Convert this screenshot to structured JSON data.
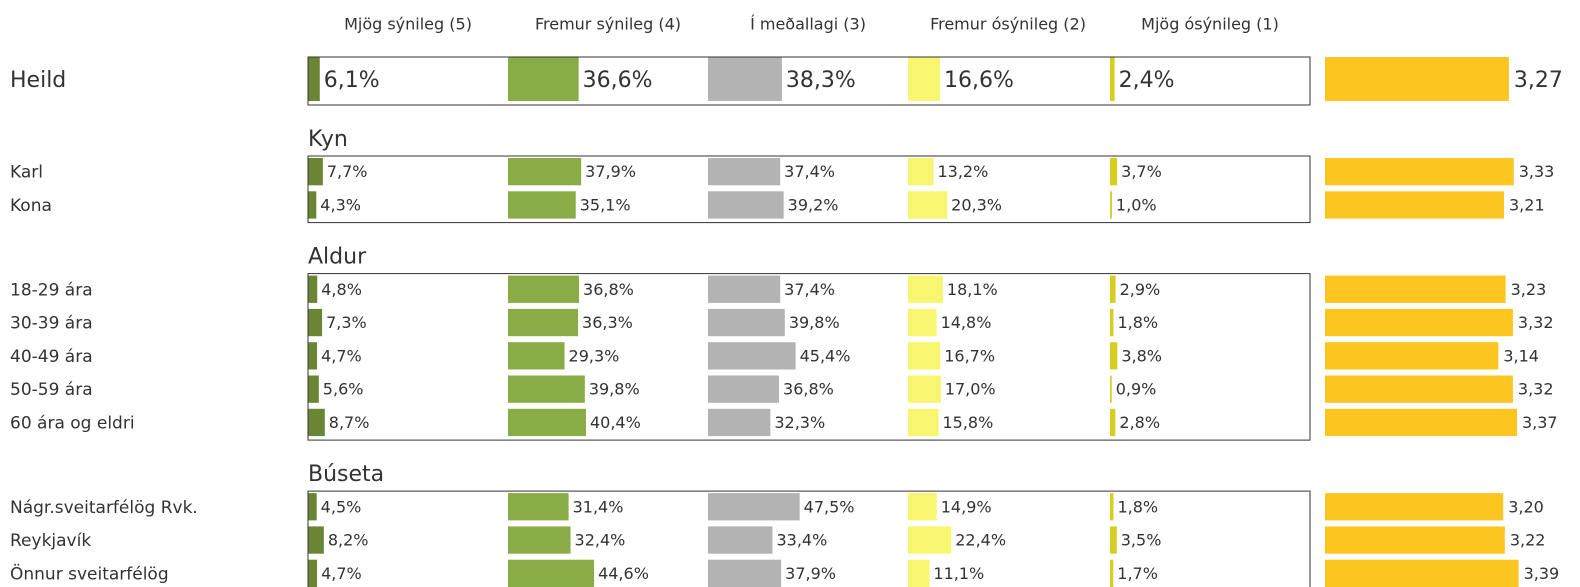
{
  "chart_data": {
    "type": "bar-table",
    "xlim": [
      0,
      100
    ],
    "series": [
      {
        "name": "Mjög sýnileg (5)",
        "color": "#6a8534",
        "values": [
          6.1,
          7.7,
          4.3,
          4.8,
          7.3,
          4.7,
          5.6,
          8.7,
          4.5,
          8.2,
          4.7
        ],
        "value_labels": [
          "6,1%",
          "7,7%",
          "4,3%",
          "4,8%",
          "7,3%",
          "4,7%",
          "5,6%",
          "8,7%",
          "4,5%",
          "8,2%",
          "4,7%"
        ]
      },
      {
        "name": "Fremur sýnileg (4)",
        "color": "#8aac46",
        "values": [
          36.6,
          37.9,
          35.1,
          36.8,
          36.3,
          29.3,
          39.8,
          40.4,
          31.4,
          32.4,
          44.6
        ],
        "value_labels": [
          "36,6%",
          "37,9%",
          "35,1%",
          "36,8%",
          "36,3%",
          "29,3%",
          "39,8%",
          "40,4%",
          "31,4%",
          "32,4%",
          "44,6%"
        ]
      },
      {
        "name": "Í meðallagi (3)",
        "color": "#b3b3b3",
        "values": [
          38.3,
          37.4,
          39.2,
          37.4,
          39.8,
          45.4,
          36.8,
          32.3,
          47.5,
          33.4,
          37.9
        ],
        "value_labels": [
          "38,3%",
          "37,4%",
          "39,2%",
          "37,4%",
          "39,8%",
          "45,4%",
          "36,8%",
          "32,3%",
          "47,5%",
          "33,4%",
          "37,9%"
        ]
      },
      {
        "name": "Fremur ósýnileg (2)",
        "color": "#f8f56e",
        "values": [
          16.6,
          13.2,
          20.3,
          18.1,
          14.8,
          16.7,
          17.0,
          15.8,
          14.9,
          22.4,
          11.1
        ],
        "value_labels": [
          "16,6%",
          "13,2%",
          "20,3%",
          "18,1%",
          "14,8%",
          "16,7%",
          "17,0%",
          "15,8%",
          "14,9%",
          "22,4%",
          "11,1%"
        ]
      },
      {
        "name": "Mjög ósýnileg (1)",
        "color": "#d6cf22",
        "values": [
          2.4,
          3.7,
          1.0,
          2.9,
          1.8,
          3.8,
          0.9,
          2.8,
          1.8,
          3.5,
          1.7
        ],
        "value_labels": [
          "2,4%",
          "3,7%",
          "1,0%",
          "2,9%",
          "1,8%",
          "3,8%",
          "0,9%",
          "2,8%",
          "1,8%",
          "3,5%",
          "1,7%"
        ]
      }
    ],
    "mean": {
      "color": "#fdc520",
      "xlim": [
        1,
        5
      ],
      "values": [
        3.27,
        3.33,
        3.21,
        3.23,
        3.32,
        3.14,
        3.32,
        3.37,
        3.2,
        3.22,
        3.39
      ],
      "value_labels": [
        "3,27",
        "3,33",
        "3,21",
        "3,23",
        "3,32",
        "3,14",
        "3,32",
        "3,37",
        "3,20",
        "3,22",
        "3,39"
      ]
    },
    "groups": [
      {
        "categories": [
          "Heild"
        ]
      },
      {
        "title": "Kyn",
        "categories": [
          "Karl",
          "Kona"
        ]
      },
      {
        "title": "Aldur",
        "categories": [
          "18-29 ára",
          "30-39 ára",
          "40-49 ára",
          "50-59 ára",
          "60 ára og eldri"
        ]
      },
      {
        "title": "Búseta",
        "categories": [
          "Nágr.sveitarfélög Rvk.",
          "Reykjavík",
          "Önnur sveitarfélög"
        ]
      }
    ]
  }
}
